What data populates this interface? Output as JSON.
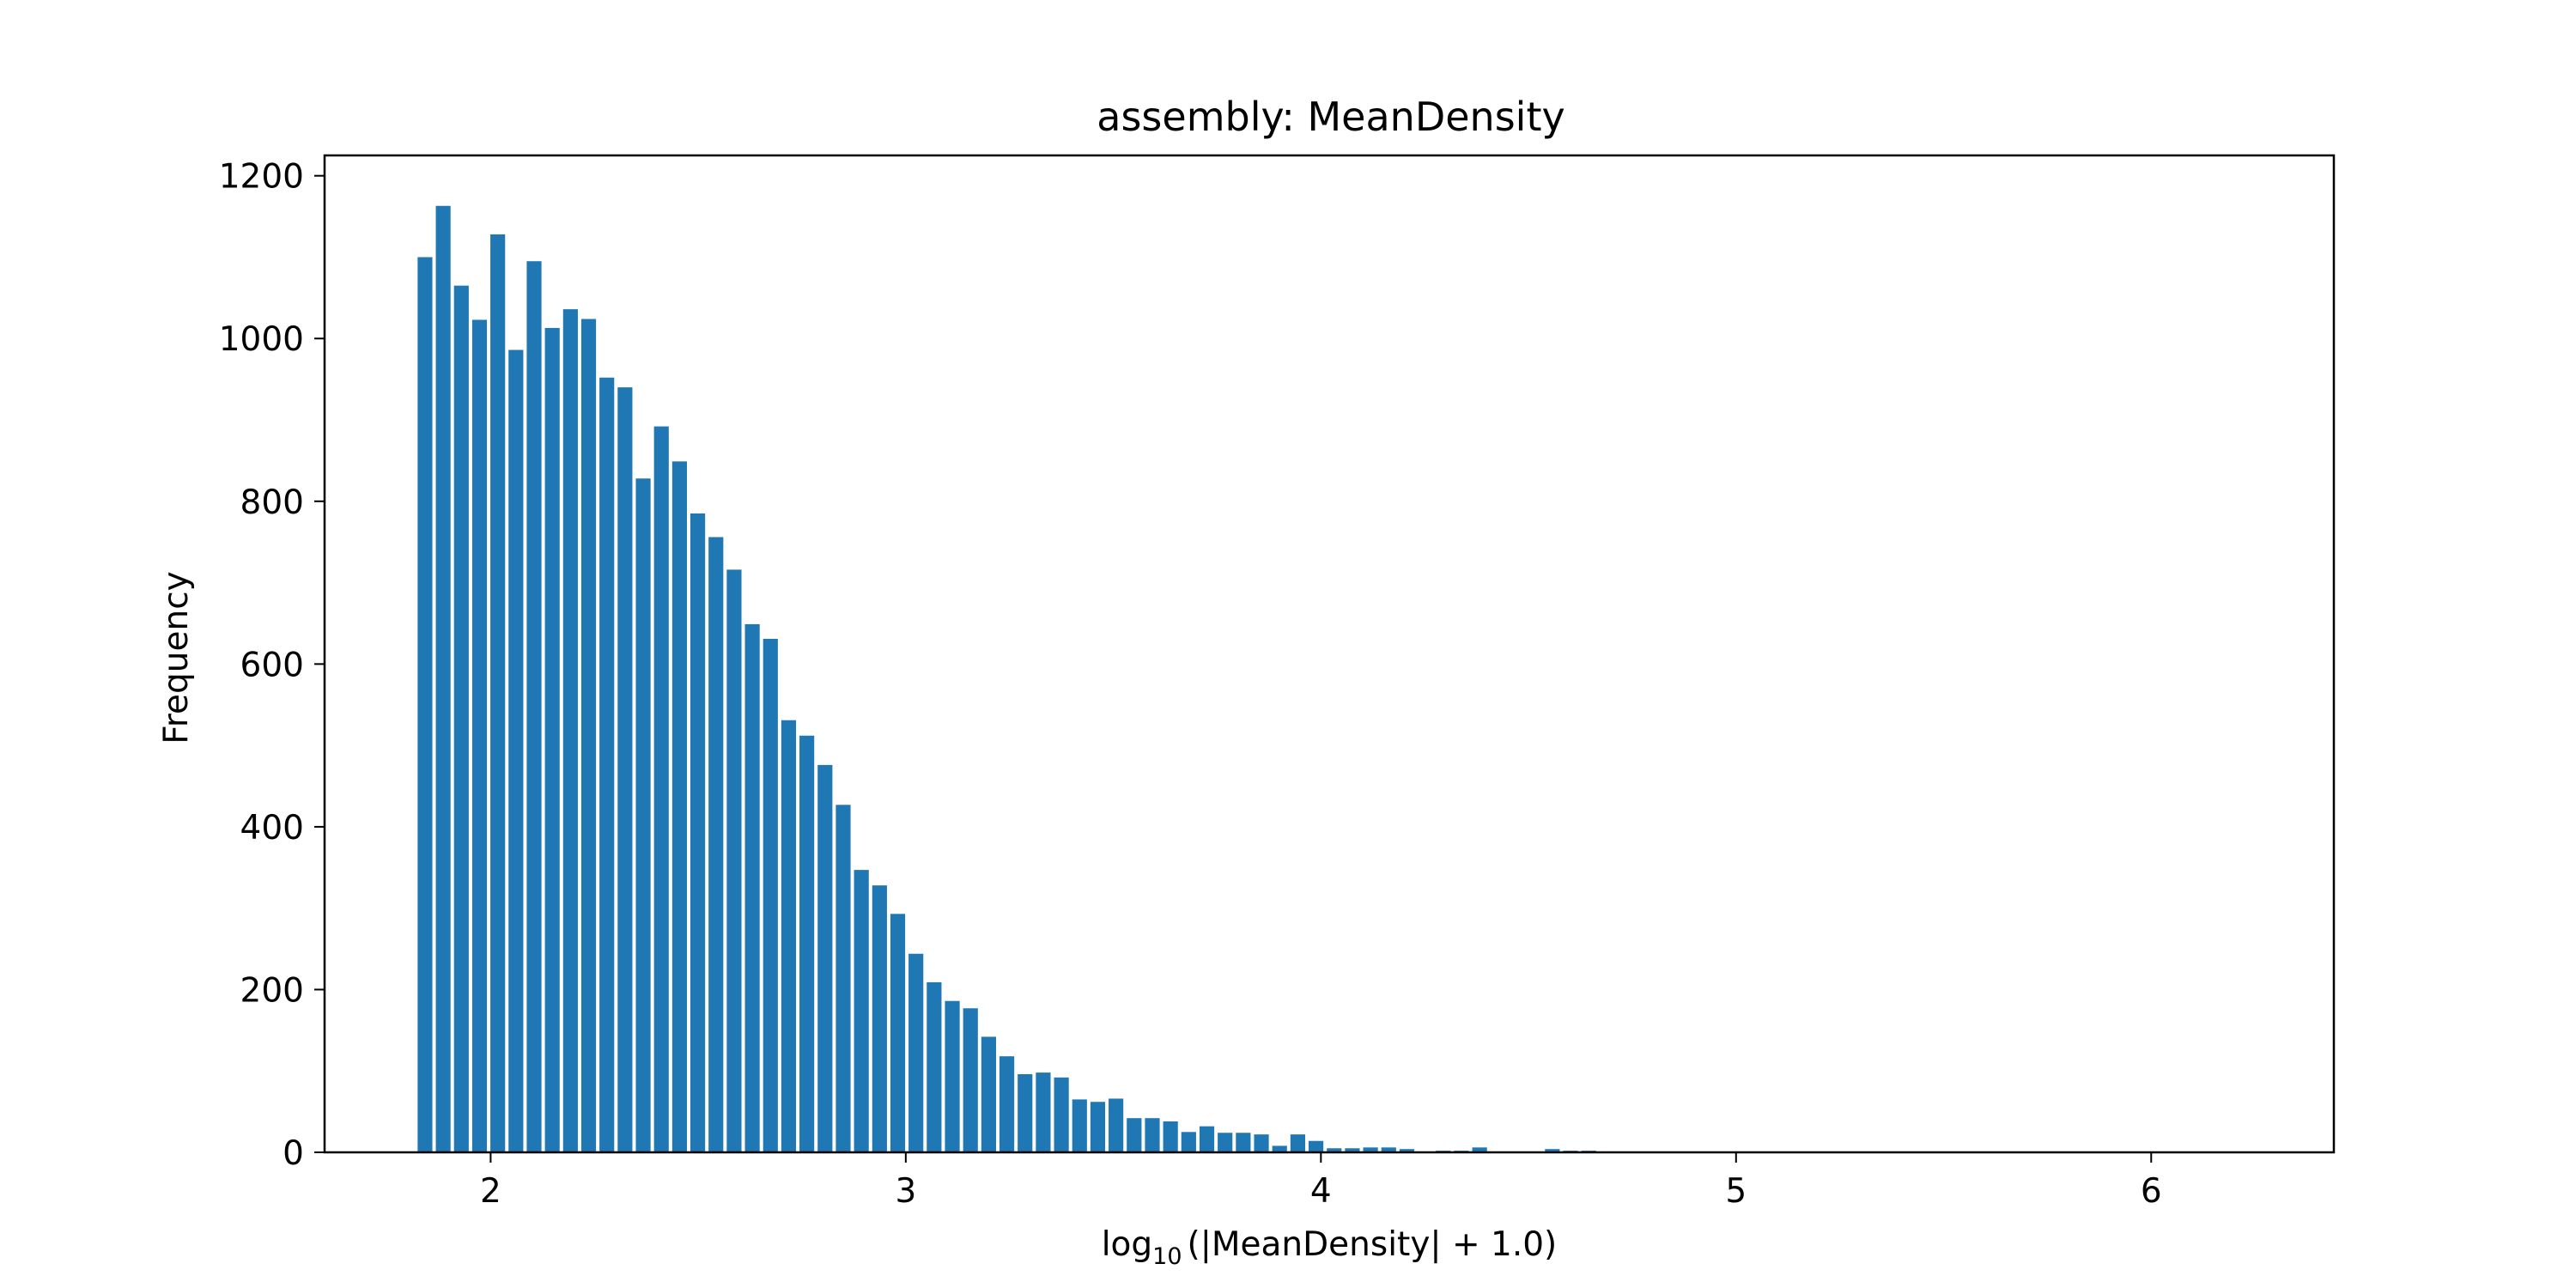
{
  "chart_data": {
    "type": "bar",
    "title": "assembly: MeanDensity",
    "xlabel": {
      "prefix": "log",
      "subscript": "10",
      "rest": "(|MeanDensity| + 1.0)"
    },
    "ylabel": "Frequency",
    "xlim": [
      1.6,
      6.44
    ],
    "ylim": [
      0,
      1225
    ],
    "xticks": [
      2,
      3,
      4,
      5,
      6
    ],
    "yticks": [
      0,
      200,
      400,
      600,
      800,
      1000,
      1200
    ],
    "grid": false,
    "legend": "none",
    "bar_color": "#1f77b4",
    "bin_start": 1.82,
    "bin_width": 0.0438,
    "values": [
      1100,
      1163,
      1065,
      1023,
      1128,
      986,
      1095,
      1013,
      1036,
      1024,
      952,
      940,
      828,
      892,
      849,
      785,
      756,
      716,
      649,
      631,
      531,
      512,
      476,
      427,
      347,
      328,
      293,
      244,
      209,
      186,
      177,
      142,
      118,
      96,
      98,
      92,
      65,
      62,
      66,
      42,
      42,
      38,
      25,
      32,
      24,
      24,
      22,
      8,
      22,
      14,
      5,
      5,
      6,
      6,
      4,
      0,
      2,
      2,
      6,
      1,
      1,
      0,
      4,
      2,
      2,
      0,
      0,
      0,
      0,
      0,
      0,
      0,
      0,
      0,
      0,
      0,
      0,
      0,
      0,
      0,
      0,
      0,
      0,
      0,
      0,
      0,
      0,
      0,
      0,
      0,
      0,
      0,
      0,
      0,
      0,
      0,
      0,
      0,
      0,
      0,
      0,
      0,
      1
    ]
  }
}
